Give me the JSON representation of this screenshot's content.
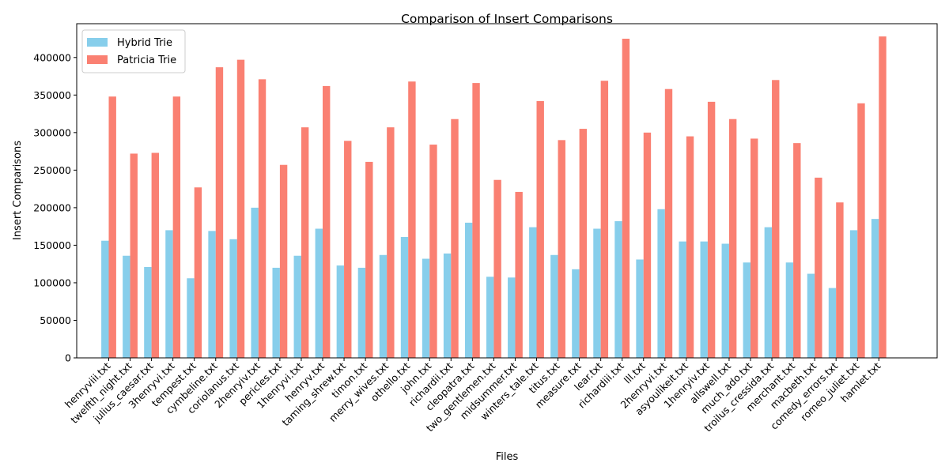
{
  "chart_data": {
    "type": "bar",
    "title": "Comparison of Insert Comparisons",
    "xlabel": "Files",
    "ylabel": "Insert Comparisons",
    "ylim": [
      0,
      445000
    ],
    "yticks": [
      0,
      50000,
      100000,
      150000,
      200000,
      250000,
      300000,
      350000,
      400000
    ],
    "legend_position": "top-left",
    "grid": false,
    "categories": [
      "henryviii.txt",
      "twelfth_night.txt",
      "julius_caesar.txt",
      "3henryvi.txt",
      "tempest.txt",
      "cymbeline.txt",
      "coriolanus.txt",
      "2henryiv.txt",
      "pericles.txt",
      "1henryvi.txt",
      "henryv.txt",
      "taming_shrew.txt",
      "timon.txt",
      "merry_wives.txt",
      "othello.txt",
      "john.txt",
      "richardii.txt",
      "cleopatra.txt",
      "two_gentlemen.txt",
      "midsummer.txt",
      "winters_tale.txt",
      "titus.txt",
      "measure.txt",
      "lear.txt",
      "richardiii.txt",
      "lll.txt",
      "2henryvi.txt",
      "asyoulikeit.txt",
      "1henryiv.txt",
      "allswell.txt",
      "much_ado.txt",
      "troilus_cressida.txt",
      "merchant.txt",
      "macbeth.txt",
      "comedy_errors.txt",
      "romeo_juliet.txt",
      "hamlet.txt"
    ],
    "series": [
      {
        "name": "Hybrid Trie",
        "color": "#87ceeb",
        "values": [
          156000,
          136000,
          121000,
          170000,
          106000,
          169000,
          158000,
          200000,
          120000,
          136000,
          172000,
          123000,
          120000,
          137000,
          161000,
          132000,
          139000,
          180000,
          108000,
          107000,
          174000,
          137000,
          118000,
          172000,
          182000,
          131000,
          198000,
          155000,
          155000,
          152000,
          127000,
          174000,
          127000,
          112000,
          93000,
          170000,
          185000
        ]
      },
      {
        "name": "Patricia Trie",
        "color": "#fa8072",
        "values": [
          348000,
          272000,
          273000,
          348000,
          227000,
          387000,
          397000,
          371000,
          257000,
          307000,
          362000,
          289000,
          261000,
          307000,
          368000,
          284000,
          318000,
          366000,
          237000,
          221000,
          342000,
          290000,
          305000,
          369000,
          425000,
          300000,
          358000,
          295000,
          341000,
          318000,
          292000,
          370000,
          286000,
          240000,
          207000,
          339000,
          428000
        ]
      }
    ]
  }
}
